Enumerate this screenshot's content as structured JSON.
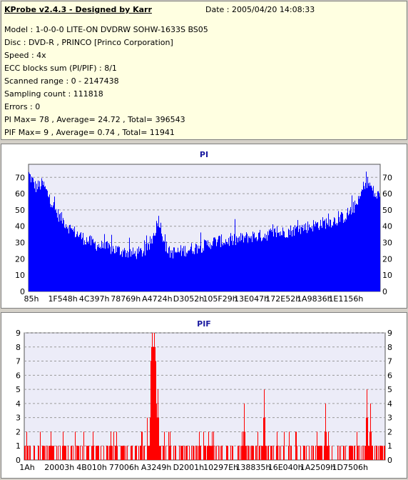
{
  "header": {
    "title": "KProbe v2.4.3 - Designed by Karr",
    "date": "Date : 2005/04/20 14:08:33",
    "lines": [
      "Model : 1-0-0-0 LITE-ON DVDRW SOHW-1633S BS05",
      "Disc : DVD-R , PRINCO [Princo Corporation]",
      "Speed : 4x",
      "ECC blocks sum (PI/PIF) : 8/1",
      "Scanned range : 0 - 2147438",
      "Sampling count : 111818",
      "Errors : 0",
      "PI Max= 78 , Average= 24.72 , Total= 396543",
      "PIF Max= 9 , Average= 0.74 , Total= 11941"
    ]
  },
  "chart_data": [
    {
      "type": "area",
      "title": "PI",
      "color": "#0000ff",
      "ylim": [
        0,
        78
      ],
      "yticks": [
        0,
        10,
        20,
        30,
        40,
        50,
        60,
        70
      ],
      "xticks": [
        "85h",
        "1F548h",
        "4C397h",
        "78769h",
        "A4724h",
        "D3052h",
        "105F29h",
        "13E047h",
        "172E52h",
        "1A9836h",
        "1E1156h"
      ],
      "x": [
        0,
        0.02,
        0.04,
        0.06,
        0.08,
        0.1,
        0.12,
        0.14,
        0.16,
        0.18,
        0.2,
        0.22,
        0.24,
        0.26,
        0.28,
        0.3,
        0.32,
        0.34,
        0.355,
        0.37,
        0.38,
        0.39,
        0.4,
        0.42,
        0.44,
        0.46,
        0.48,
        0.5,
        0.52,
        0.54,
        0.56,
        0.58,
        0.6,
        0.62,
        0.64,
        0.66,
        0.68,
        0.7,
        0.72,
        0.74,
        0.76,
        0.78,
        0.8,
        0.82,
        0.84,
        0.86,
        0.88,
        0.9,
        0.92,
        0.94,
        0.95,
        0.96,
        0.97,
        0.98,
        0.99,
        1.0
      ],
      "values": [
        72,
        64,
        66,
        57,
        48,
        43,
        38,
        35,
        32,
        30,
        28,
        27,
        26,
        25,
        24,
        23,
        24,
        26,
        34,
        45,
        36,
        28,
        24,
        24,
        25,
        26,
        27,
        28,
        30,
        31,
        31,
        31,
        32,
        33,
        34,
        34,
        35,
        36,
        36,
        37,
        38,
        39,
        40,
        41,
        42,
        43,
        44,
        46,
        50,
        55,
        62,
        68,
        66,
        62,
        58,
        60
      ],
      "noise": 8
    },
    {
      "type": "bar",
      "title": "PIF",
      "color": "#ff0000",
      "ylim": [
        0,
        9
      ],
      "yticks": [
        0,
        1,
        2,
        3,
        4,
        5,
        6,
        7,
        8,
        9
      ],
      "xticks": [
        "1Ah",
        "20003h",
        "4B010h",
        "77006h",
        "A3249h",
        "D2001h",
        "10297Eh",
        "138835h",
        "16E040h",
        "1A2509h",
        "1D7506h"
      ],
      "peaks": [
        {
          "x": 0.355,
          "value": 9
        },
        {
          "x": 0.36,
          "value": 9
        },
        {
          "x": 0.365,
          "value": 6
        },
        {
          "x": 0.37,
          "value": 5
        },
        {
          "x": 0.61,
          "value": 4
        },
        {
          "x": 0.665,
          "value": 5
        },
        {
          "x": 0.835,
          "value": 4
        },
        {
          "x": 0.95,
          "value": 5
        },
        {
          "x": 0.96,
          "value": 4
        }
      ],
      "baseline": 1
    }
  ]
}
